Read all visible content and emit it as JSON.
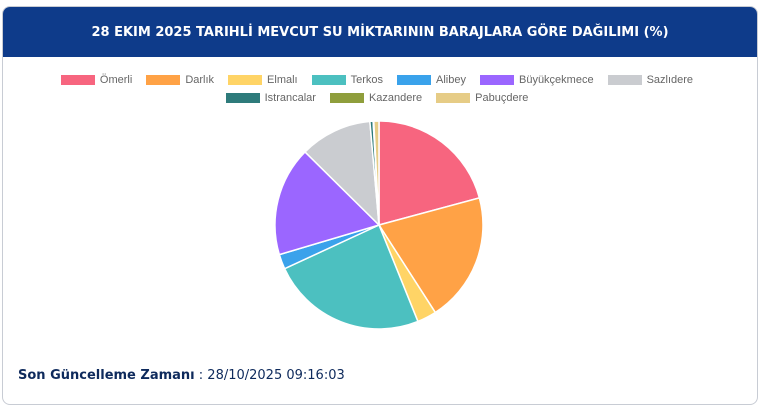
{
  "chart_data": {
    "type": "pie",
    "title": "28 EKIM 2025 TARIHLİ MEVCUT SU MİKTARININ BARAJLARA GÖRE DAĞILIMI (%)",
    "categories": [
      "Ömerli",
      "Darlık",
      "Elmalı",
      "Terkos",
      "Alibey",
      "Büyükçekmece",
      "Sazlıdere",
      "Istrancalar",
      "Kazandere",
      "Pabuçdere"
    ],
    "values": [
      20.8,
      20.1,
      3.0,
      24.2,
      2.3,
      17.0,
      11.2,
      0.5,
      0.1,
      0.8
    ],
    "colors": [
      "#f7657f",
      "#ffa246",
      "#ffd466",
      "#4cc0c0",
      "#3aa2eb",
      "#9b66ff",
      "#caccd0",
      "#2e7b7b",
      "#8f9e3c",
      "#e6cc86"
    ],
    "legend": "top"
  },
  "footer": {
    "label": "Son Güncelleme Zamanı",
    "separator": ":",
    "value": "28/10/2025 09:16:03"
  }
}
